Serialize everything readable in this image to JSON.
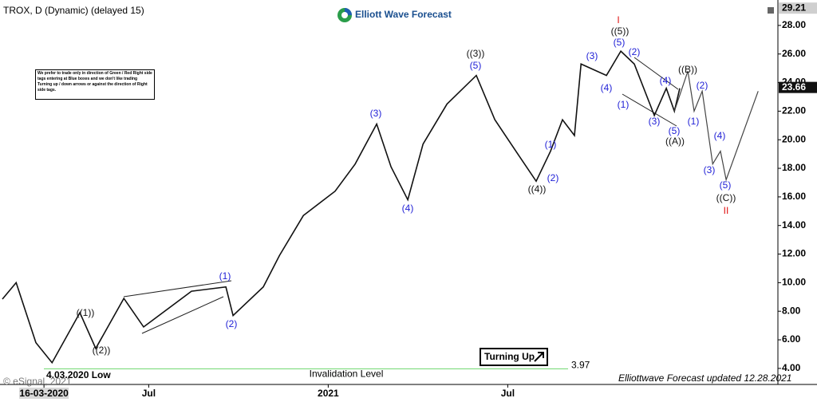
{
  "chart_data": {
    "type": "line",
    "title": "TROX, D (Dynamic) (delayed 15)",
    "logo": "Elliott Wave Forecast",
    "note": "We prefer to trade only in direction of Green / Red Right side tags entering at Blue boxes and we don't like trading Turning up / down arrows or against the direction of Right side tags.",
    "low_label": "4.03.2020 Low",
    "invalidation": {
      "value": 3.97,
      "label": "Invalidation Level",
      "color": "#7ddc7d"
    },
    "turning_label": "Turning Up",
    "footer": "Elliottwave Forecast updated 12.28.2021",
    "copyright": "© eSignal, 2021",
    "price_markers": [
      29.21,
      23.66
    ],
    "xlim": [
      1.03,
      27.03
    ],
    "xticks": [
      {
        "value": 2.5,
        "label": "16-03-2020"
      },
      {
        "value": 6,
        "label": "Jul"
      },
      {
        "value": 12,
        "label": "2021"
      },
      {
        "value": 18,
        "label": "Jul"
      }
    ],
    "ylim": [
      3.1,
      29.5
    ],
    "yticks": [
      {
        "value": 4,
        "label": "4.00"
      },
      {
        "value": 6,
        "label": "6.00"
      },
      {
        "value": 8,
        "label": "8.00"
      },
      {
        "value": 10,
        "label": "10.00"
      },
      {
        "value": 12,
        "label": "12.00"
      },
      {
        "value": 14,
        "label": "14.00"
      },
      {
        "value": 16,
        "label": "16.00"
      },
      {
        "value": 18,
        "label": "18.00"
      },
      {
        "value": 20,
        "label": "20.00"
      },
      {
        "value": 22,
        "label": "22.00"
      },
      {
        "value": 24,
        "label": "24.00"
      },
      {
        "value": 26,
        "label": "26.00"
      },
      {
        "value": 28,
        "label": "28.00"
      }
    ],
    "series": [
      {
        "color": "#111111",
        "x": [
          1.11,
          1.57,
          2.23,
          2.77,
          3.7,
          4.23,
          5.17,
          5.83,
          7.43,
          8.58,
          8.82,
          9.83,
          10.37,
          11.17,
          12.23,
          12.9,
          13.62,
          14.1,
          14.66,
          15.17,
          15.97,
          16.95,
          17.57,
          18.37,
          18.95,
          19.43,
          19.83,
          20.23,
          20.45,
          21.3,
          21.78,
          22.23,
          22.9,
          23.3,
          23.57,
          23.75
        ],
        "values": [
          8.85,
          10.0,
          5.8,
          4.4,
          7.9,
          5.4,
          8.9,
          6.9,
          9.4,
          9.7,
          7.7,
          9.7,
          11.9,
          14.7,
          16.4,
          18.3,
          21.1,
          18.1,
          15.8,
          19.7,
          22.5,
          24.5,
          21.4,
          18.9,
          17.1,
          19.2,
          21.4,
          20.3,
          25.3,
          24.5,
          26.2,
          25.3,
          21.7,
          23.6,
          22.0,
          23.6
        ]
      },
      {
        "color": "#444444",
        "x": [
          23.57,
          24.02,
          24.23,
          24.5,
          24.85,
          25.11,
          25.3,
          26.37
        ],
        "values": [
          22.0,
          24.8,
          22.0,
          23.4,
          18.3,
          19.2,
          17.2,
          23.4
        ]
      }
    ],
    "wave_labels": [
      {
        "text": "((1))",
        "color": "#111111"
      },
      {
        "text": "((2))",
        "color": "#111111"
      },
      {
        "text": "((3))",
        "color": "#111111"
      },
      {
        "text": "((4))",
        "color": "#111111"
      },
      {
        "text": "((5))",
        "color": "#111111"
      },
      {
        "text": "((B))",
        "color": "#111111"
      },
      {
        "text": "((A))",
        "color": "#111111"
      },
      {
        "text": "((C))",
        "color": "#111111"
      },
      {
        "text": "(1)",
        "color": "#1f1fd6"
      },
      {
        "text": "(2)",
        "color": "#1f1fd6"
      },
      {
        "text": "(3)",
        "color": "#1f1fd6"
      },
      {
        "text": "(4)",
        "color": "#1f1fd6"
      },
      {
        "text": "(5)",
        "color": "#1f1fd6"
      },
      {
        "text": "(1)",
        "color": "#1f1fd6"
      },
      {
        "text": "(2)",
        "color": "#1f1fd6"
      },
      {
        "text": "(3)",
        "color": "#1f1fd6"
      },
      {
        "text": "(4)",
        "color": "#1f1fd6"
      },
      {
        "text": "(5)",
        "color": "#1f1fd6"
      },
      {
        "text": "(2)",
        "color": "#1f1fd6"
      },
      {
        "text": "(1)",
        "color": "#1f1fd6"
      },
      {
        "text": "(3)",
        "color": "#1f1fd6"
      },
      {
        "text": "(4)",
        "color": "#1f1fd6"
      },
      {
        "text": "(5)",
        "color": "#1f1fd6"
      },
      {
        "text": "(2)",
        "color": "#1f1fd6"
      },
      {
        "text": "(1)",
        "color": "#1f1fd6"
      },
      {
        "text": "(3)",
        "color": "#1f1fd6"
      },
      {
        "text": "(4)",
        "color": "#1f1fd6"
      },
      {
        "text": "(5)",
        "color": "#1f1fd6"
      },
      {
        "text": "I",
        "color": "#e01010"
      },
      {
        "text": "II",
        "color": "#e01010"
      }
    ]
  }
}
